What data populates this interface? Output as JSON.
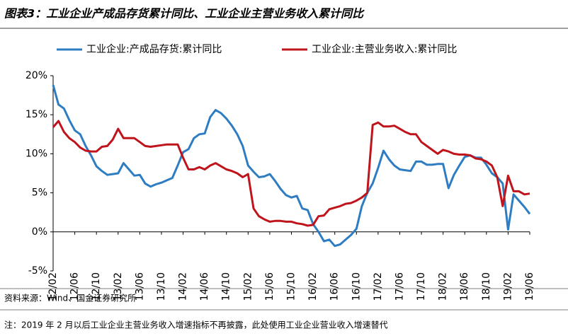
{
  "chart_data": {
    "type": "line",
    "title": "图表3：工业企业产成品存货累计同比、工业企业主营业务收入累计同比",
    "source": "资料来源：Wind、国金证券研究所",
    "note": "注：2019 年 2 月以后工业企业主营业务收入增速指标不再披露，此处使用工业企业营业收入增速替代",
    "categories": [
      "12/02",
      null,
      null,
      null,
      "12/06",
      null,
      null,
      null,
      "12/10",
      null,
      null,
      null,
      "13/02",
      null,
      null,
      null,
      "13/06",
      null,
      null,
      null,
      "13/10",
      null,
      null,
      null,
      "14/02",
      null,
      null,
      null,
      "14/06",
      null,
      null,
      null,
      "14/10",
      null,
      null,
      null,
      "15/02",
      null,
      null,
      null,
      "15/06",
      null,
      null,
      null,
      "15/10",
      null,
      null,
      null,
      "16/02",
      null,
      null,
      null,
      "16/06",
      null,
      null,
      null,
      "16/10",
      null,
      null,
      null,
      "17/02",
      null,
      null,
      null,
      "17/06",
      null,
      null,
      null,
      "17/10",
      null,
      null,
      null,
      "18/02",
      null,
      null,
      null,
      "18/06",
      null,
      null,
      null,
      "18/10",
      null,
      null,
      null,
      "19/02",
      null,
      null,
      null,
      "19/06"
    ],
    "series": [
      {
        "name": "工业企业:产成品存货:累计同比",
        "color": "#2e7dc3",
        "values": [
          18.8,
          16.3,
          15.8,
          14.3,
          13.0,
          12.5,
          11.0,
          9.8,
          8.4,
          7.8,
          7.3,
          7.4,
          7.5,
          8.8,
          8.0,
          7.2,
          7.3,
          6.2,
          5.8,
          6.1,
          6.3,
          6.6,
          6.9,
          8.5,
          10.2,
          10.6,
          12.0,
          12.5,
          12.6,
          14.7,
          15.6,
          15.2,
          14.5,
          13.6,
          12.5,
          11.0,
          8.5,
          7.7,
          7.0,
          7.1,
          7.4,
          6.5,
          5.5,
          4.7,
          4.4,
          4.6,
          3.0,
          2.8,
          1.0,
          0.0,
          -1.2,
          -1.0,
          -1.8,
          -1.6,
          -1.0,
          -0.4,
          0.4,
          3.3,
          5.0,
          6.2,
          8.2,
          10.4,
          9.3,
          8.5,
          8.0,
          7.9,
          7.8,
          9.0,
          9.0,
          8.6,
          8.6,
          8.7,
          8.7,
          5.6,
          7.3,
          8.5,
          9.6,
          9.8,
          9.5,
          9.5,
          8.6,
          7.5,
          7.0,
          6.2,
          0.3,
          4.8,
          4.0,
          3.2,
          2.3
        ]
      },
      {
        "name": "工业企业:主营业务收入:累计同比",
        "color": "#c0141c",
        "values": [
          13.4,
          14.2,
          12.8,
          12.0,
          11.5,
          10.8,
          10.4,
          10.3,
          10.3,
          10.9,
          11.0,
          11.8,
          13.2,
          12.0,
          12.0,
          12.0,
          11.5,
          11.0,
          10.9,
          11.0,
          11.1,
          11.2,
          11.2,
          11.2,
          9.5,
          8.0,
          8.0,
          8.3,
          8.0,
          8.5,
          8.8,
          8.4,
          8.0,
          7.8,
          7.5,
          7.0,
          7.4,
          3.0,
          2.0,
          1.6,
          1.3,
          1.4,
          1.4,
          1.3,
          1.3,
          1.1,
          1.0,
          0.8,
          0.9,
          2.0,
          2.1,
          2.9,
          3.1,
          3.3,
          3.6,
          3.7,
          4.0,
          4.4,
          5.0,
          13.7,
          14.0,
          13.5,
          13.5,
          13.6,
          13.2,
          12.8,
          12.5,
          12.5,
          11.5,
          11.0,
          10.5,
          10.0,
          10.5,
          10.3,
          10.0,
          9.9,
          9.9,
          9.8,
          9.4,
          9.3,
          9.0,
          8.5,
          7.0,
          3.3,
          7.2,
          5.2,
          5.2,
          4.8,
          4.9
        ]
      }
    ],
    "ylim": [
      -5,
      20
    ],
    "yticks": [
      {
        "value": -5,
        "label": "-5%"
      },
      {
        "value": 0,
        "label": "0%"
      },
      {
        "value": 5,
        "label": "5%"
      },
      {
        "value": 10,
        "label": "10%"
      },
      {
        "value": 15,
        "label": "15%"
      },
      {
        "value": 20,
        "label": "20%"
      }
    ],
    "grid": false,
    "legend": "top"
  }
}
